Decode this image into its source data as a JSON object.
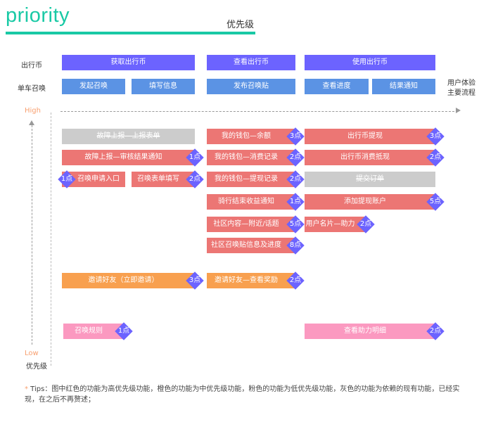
{
  "header": {
    "title": "priority",
    "subtitle": "优先级"
  },
  "rows": {
    "coin": "出行币",
    "summon": "单车召唤",
    "flow_label_1": "用户体验",
    "flow_label_2": "主要流程"
  },
  "flow": {
    "coin": [
      "获取出行币",
      "查看出行币",
      "使用出行币"
    ],
    "summon": [
      "发起召唤",
      "填写信息",
      "发布召唤贴",
      "查看进度",
      "结果通知"
    ]
  },
  "axis": {
    "high": "High",
    "low": "Low",
    "label": "优先级"
  },
  "features": [
    {
      "text": "故障上报—上报表单",
      "priority": "existing"
    },
    {
      "text": "故障上报—审核结果通知",
      "points": "1点",
      "priority": "high"
    },
    {
      "text": "召唤申请入口",
      "points": "1点",
      "priority": "high"
    },
    {
      "text": "召唤表单填写",
      "points": "2点",
      "priority": "high"
    },
    {
      "text": "我的钱包—余额",
      "points": "3点",
      "priority": "high"
    },
    {
      "text": "我的钱包—消费记录",
      "points": "2点",
      "priority": "high"
    },
    {
      "text": "我的钱包—提现记录",
      "points": "2点",
      "priority": "high"
    },
    {
      "text": "骑行结束收益通知",
      "points": "1点",
      "priority": "high"
    },
    {
      "text": "社区内容—附近/话题",
      "points": "5点",
      "priority": "high"
    },
    {
      "text": "社区召唤贴信息及进度",
      "points": "8点",
      "priority": "high"
    },
    {
      "text": "出行币提现",
      "points": "3点",
      "priority": "high"
    },
    {
      "text": "出行币消费抵现",
      "points": "2点",
      "priority": "high"
    },
    {
      "text": "提交订单",
      "priority": "existing"
    },
    {
      "text": "添加提现账户",
      "points": "5点",
      "priority": "high"
    },
    {
      "text": "用户名片—助力",
      "points": "2点",
      "priority": "high"
    },
    {
      "text": "邀请好友（立即邀请）",
      "points": "3点",
      "priority": "medium"
    },
    {
      "text": "邀请好友—查看奖励",
      "points": "2点",
      "priority": "medium"
    },
    {
      "text": "召唤规则",
      "points": "1点",
      "priority": "low"
    },
    {
      "text": "查看助力明细",
      "points": "2点",
      "priority": "low"
    }
  ],
  "colors": {
    "high": "#ec7674",
    "medium": "#f8a04f",
    "low": "#fb99c0",
    "existing": "#cccccc",
    "badge": "#6c63ff",
    "coin": "#6c63ff",
    "summon": "#5b93e4",
    "accent": "#19c9a5"
  },
  "tips": {
    "star": "*",
    "text": " Tips：图中红色的功能为高优先级功能，橙色的功能为中优先级功能，粉色的功能为低优先级功能，灰色的功能为依赖的现有功能，已经实现，在之后不再赘述；"
  }
}
